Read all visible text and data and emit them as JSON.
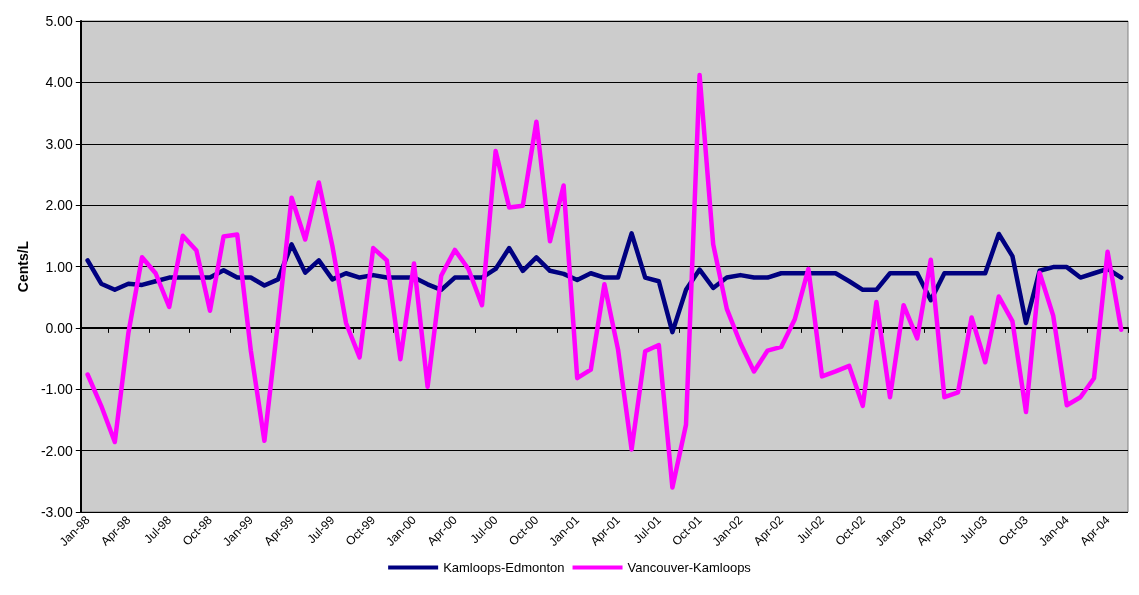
{
  "chart_data": {
    "type": "line",
    "ylabel": "Cents/L",
    "categories": [
      "Jan-98",
      null,
      null,
      "Apr-98",
      null,
      null,
      "Jul-98",
      null,
      null,
      "Oct-98",
      null,
      null,
      "Jan-99",
      null,
      null,
      "Apr-99",
      null,
      null,
      "Jul-99",
      null,
      null,
      "Oct-99",
      null,
      null,
      "Jan-00",
      null,
      null,
      "Apr-00",
      null,
      null,
      "Jul-00",
      null,
      null,
      "Oct-00",
      null,
      null,
      "Jan-01",
      null,
      null,
      "Apr-01",
      null,
      null,
      "Jul-01",
      null,
      null,
      "Oct-01",
      null,
      null,
      "Jan-02",
      null,
      null,
      "Apr-02",
      null,
      null,
      "Jul-02",
      null,
      null,
      "Oct-02",
      null,
      null,
      "Jan-03",
      null,
      null,
      "Apr-03",
      null,
      null,
      "Jul-03",
      null,
      null,
      "Oct-03",
      null,
      null,
      "Jan-04",
      null,
      null,
      "Apr-04",
      null
    ],
    "series": [
      {
        "name": "Kamloops-Edmonton",
        "color": "#000080",
        "values": [
          1.1,
          0.72,
          0.62,
          0.72,
          0.7,
          0.76,
          0.82,
          0.82,
          0.82,
          0.82,
          0.94,
          0.82,
          0.82,
          0.69,
          0.79,
          1.36,
          0.9,
          1.1,
          0.79,
          0.89,
          0.82,
          0.86,
          0.82,
          0.82,
          0.82,
          0.71,
          0.62,
          0.82,
          0.82,
          0.82,
          0.96,
          1.3,
          0.93,
          1.15,
          0.93,
          0.88,
          0.78,
          0.89,
          0.82,
          0.82,
          1.54,
          0.82,
          0.76,
          -0.07,
          0.62,
          0.95,
          0.65,
          0.82,
          0.86,
          0.82,
          0.82,
          0.89,
          0.89,
          0.89,
          0.89,
          0.89,
          0.76,
          0.62,
          0.62,
          0.89,
          0.89,
          0.89,
          0.45,
          0.89,
          0.89,
          0.89,
          0.89,
          1.53,
          1.17,
          0.08,
          0.93,
          0.99,
          0.99,
          0.82,
          0.89,
          0.96,
          0.82
        ]
      },
      {
        "name": "Vancouver-Kamloops",
        "color": "#ff00ff",
        "values": [
          -0.76,
          -1.27,
          -1.86,
          -0.08,
          1.15,
          0.89,
          0.34,
          1.5,
          1.26,
          0.28,
          1.49,
          1.52,
          -0.37,
          -1.84,
          0.1,
          2.12,
          1.44,
          2.37,
          1.33,
          0.08,
          -0.48,
          1.3,
          1.1,
          -0.51,
          1.05,
          -0.96,
          0.85,
          1.27,
          0.96,
          0.37,
          2.88,
          1.96,
          1.99,
          3.36,
          1.41,
          2.32,
          -0.82,
          -0.68,
          0.71,
          -0.35,
          -1.98,
          -0.38,
          -0.28,
          -2.6,
          -1.58,
          4.12,
          1.36,
          0.31,
          -0.25,
          -0.71,
          -0.37,
          -0.31,
          0.14,
          0.96,
          -0.79,
          -0.71,
          -0.62,
          -1.27,
          0.42,
          -1.13,
          0.37,
          -0.17,
          1.11,
          -1.13,
          -1.05,
          0.17,
          -0.56,
          0.51,
          0.11,
          -1.37,
          0.9,
          0.2,
          -1.26,
          -1.13,
          -0.82,
          1.24,
          -0.03
        ]
      }
    ],
    "ylim": [
      -3,
      5
    ],
    "yticks": [
      {
        "value": -3,
        "label": "-3.00"
      },
      {
        "value": -2,
        "label": "-2.00"
      },
      {
        "value": -1,
        "label": "-1.00"
      },
      {
        "value": 0,
        "label": "0.00"
      },
      {
        "value": 1,
        "label": "1.00"
      },
      {
        "value": 2,
        "label": "2.00"
      },
      {
        "value": 3,
        "label": "3.00"
      },
      {
        "value": 4,
        "label": "4.00"
      },
      {
        "value": 5,
        "label": "5.00"
      }
    ],
    "grid": "y",
    "legend": "bottom",
    "marker": "none",
    "line_style": "solid"
  }
}
